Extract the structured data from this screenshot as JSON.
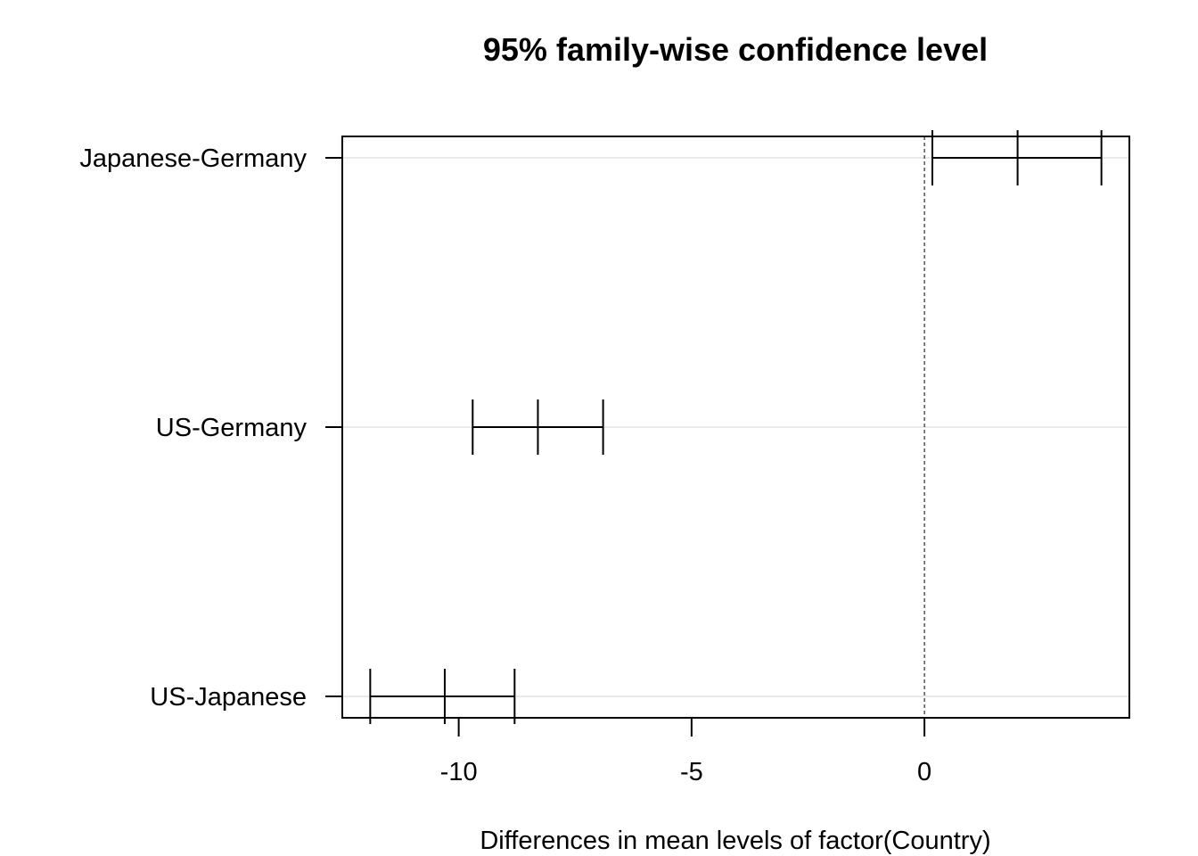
{
  "chart_data": {
    "type": "interval",
    "title": "95% family-wise confidence level",
    "xlabel": "Differences in mean levels of factor(Country)",
    "ylabel": "",
    "xlim": [
      -12.5,
      4.4
    ],
    "xticks": [
      -10,
      -5,
      0
    ],
    "xtick_labels": [
      "-10",
      "-5",
      "0"
    ],
    "reference_line": 0,
    "grid": "horizontal",
    "comparisons": [
      {
        "label": "Japanese-Germany",
        "diff": 2.0,
        "lwr": 0.17,
        "upr": 3.8
      },
      {
        "label": "US-Germany",
        "diff": -8.3,
        "lwr": -9.7,
        "upr": -6.9
      },
      {
        "label": "US-Japanese",
        "diff": -10.3,
        "lwr": -11.9,
        "upr": -8.8
      }
    ]
  }
}
